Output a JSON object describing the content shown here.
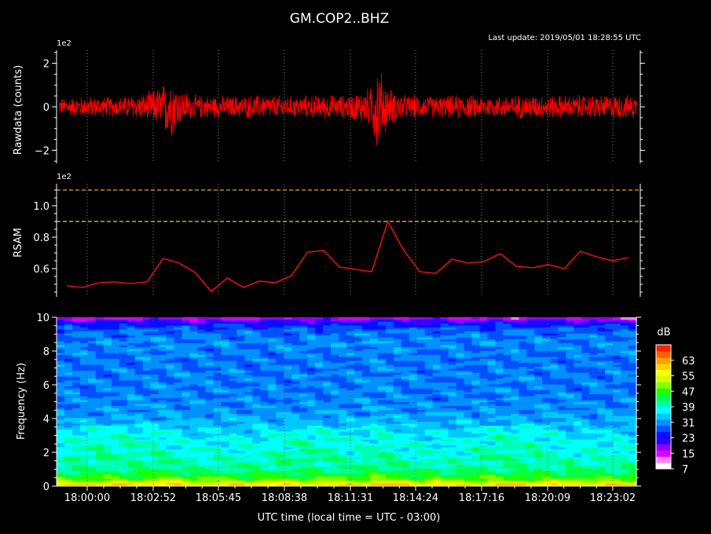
{
  "title": "GM.COP2..BHZ",
  "last_update": "Last update: 2019/05/01 18:28:55 UTC",
  "chart_data": [
    {
      "type": "line",
      "name": "rawdata",
      "ylabel": "Rawdata (counts)",
      "scale_label": "1e2",
      "ylim": [
        -2.6,
        2.6
      ],
      "yticks": [
        -2,
        0,
        2
      ],
      "ytick_labels": [
        "−2",
        "0",
        "2"
      ],
      "color": "#ff0000",
      "envelope": [
        {
          "t": 0.0,
          "a": 0.45
        },
        {
          "t": 0.05,
          "a": 0.55
        },
        {
          "t": 0.1,
          "a": 0.5
        },
        {
          "t": 0.15,
          "a": 0.7
        },
        {
          "t": 0.18,
          "a": 1.1
        },
        {
          "t": 0.19,
          "a": 1.7
        },
        {
          "t": 0.21,
          "a": 0.9
        },
        {
          "t": 0.23,
          "a": 0.6
        },
        {
          "t": 0.3,
          "a": 0.55
        },
        {
          "t": 0.35,
          "a": 0.6
        },
        {
          "t": 0.4,
          "a": 0.55
        },
        {
          "t": 0.45,
          "a": 0.6
        },
        {
          "t": 0.5,
          "a": 0.6
        },
        {
          "t": 0.54,
          "a": 1.0
        },
        {
          "t": 0.55,
          "a": 2.4
        },
        {
          "t": 0.57,
          "a": 1.0
        },
        {
          "t": 0.6,
          "a": 0.6
        },
        {
          "t": 0.65,
          "a": 0.55
        },
        {
          "t": 0.7,
          "a": 0.6
        },
        {
          "t": 0.75,
          "a": 0.55
        },
        {
          "t": 0.8,
          "a": 0.6
        },
        {
          "t": 0.85,
          "a": 0.6
        },
        {
          "t": 0.9,
          "a": 0.6
        },
        {
          "t": 0.95,
          "a": 0.6
        },
        {
          "t": 1.0,
          "a": 0.6
        }
      ]
    },
    {
      "type": "line",
      "name": "rsam",
      "ylabel": "RSAM",
      "scale_label": "1e2",
      "ylim": [
        0.42,
        1.14
      ],
      "yticks": [
        0.6,
        0.8,
        1.0
      ],
      "ytick_labels": [
        "0.6",
        "0.8",
        "1.0"
      ],
      "color": "#e01010",
      "threshold_lines": [
        {
          "y": 1.1,
          "color": "#e8a13a"
        },
        {
          "y": 0.9,
          "color": "#e3d13a"
        }
      ],
      "values": [
        0.49,
        0.48,
        0.51,
        0.515,
        0.505,
        0.515,
        0.665,
        0.635,
        0.575,
        0.455,
        0.54,
        0.48,
        0.52,
        0.51,
        0.555,
        0.705,
        0.715,
        0.61,
        0.595,
        0.58,
        0.9,
        0.715,
        0.58,
        0.57,
        0.66,
        0.635,
        0.645,
        0.695,
        0.615,
        0.605,
        0.625,
        0.6,
        0.71,
        0.675,
        0.65,
        0.67
      ]
    },
    {
      "type": "heatmap",
      "name": "spectrogram",
      "ylabel": "Frequency (Hz)",
      "xlabel": "UTC time (local time = UTC - 03:00)",
      "ylim": [
        0,
        10
      ],
      "yticks": [
        0,
        2,
        4,
        6,
        8,
        10
      ],
      "xtick_labels": [
        "18:00:00",
        "18:02:52",
        "18:05:45",
        "18:08:38",
        "18:11:31",
        "18:14:24",
        "18:17:16",
        "18:20:09",
        "18:23:02"
      ],
      "colorbar": {
        "label": "dB",
        "range": [
          7,
          71
        ],
        "ticks": [
          7,
          15,
          23,
          31,
          39,
          47,
          55,
          63
        ],
        "tick_labels": [
          "7",
          "15",
          "23",
          "31",
          "39",
          "47",
          "55",
          "63"
        ],
        "colors": [
          "#ffffff",
          "#ff80ff",
          "#dd00ff",
          "#9000ff",
          "#3000ff",
          "#0010ff",
          "#0050ff",
          "#0090ff",
          "#00c8ff",
          "#00ffff",
          "#00ffb0",
          "#00ff50",
          "#20ff00",
          "#80ff00",
          "#d0ff00",
          "#ffff00",
          "#ffd000",
          "#ffa000",
          "#ff6000",
          "#ff2000"
        ]
      },
      "profile_db": [
        {
          "f": 0.0,
          "db": 62
        },
        {
          "f": 0.2,
          "db": 56
        },
        {
          "f": 0.4,
          "db": 49
        },
        {
          "f": 0.7,
          "db": 45
        },
        {
          "f": 1.0,
          "db": 42
        },
        {
          "f": 1.5,
          "db": 40
        },
        {
          "f": 2.0,
          "db": 38
        },
        {
          "f": 2.6,
          "db": 37
        },
        {
          "f": 3.2,
          "db": 35.5
        },
        {
          "f": 3.8,
          "db": 33
        },
        {
          "f": 4.5,
          "db": 31
        },
        {
          "f": 5.5,
          "db": 30
        },
        {
          "f": 6.5,
          "db": 30
        },
        {
          "f": 7.5,
          "db": 29.5
        },
        {
          "f": 8.5,
          "db": 30.5
        },
        {
          "f": 9.3,
          "db": 28.5
        },
        {
          "f": 9.75,
          "db": 22
        },
        {
          "f": 10.0,
          "db": 15
        }
      ]
    }
  ]
}
